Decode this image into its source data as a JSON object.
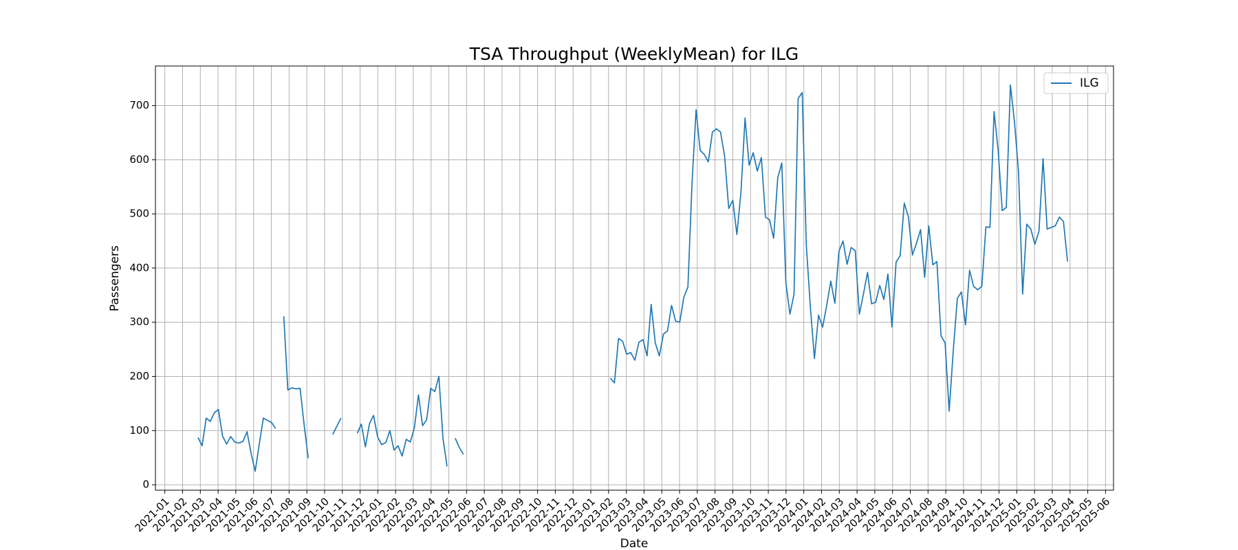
{
  "chart_data": {
    "type": "line",
    "title": "TSA Throughput (WeeklyMean) for ILG",
    "xlabel": "Date",
    "ylabel": "Passengers",
    "grid": true,
    "legend": "upper right",
    "xlim": [
      -0.53,
      53.45
    ],
    "ylim": [
      -10,
      773
    ],
    "yticks": [
      0,
      100,
      200,
      300,
      400,
      500,
      600,
      700
    ],
    "xticks": [
      {
        "value": 0,
        "label": "2021-01"
      },
      {
        "value": 1,
        "label": "2021-02"
      },
      {
        "value": 2,
        "label": "2021-03"
      },
      {
        "value": 3,
        "label": "2021-04"
      },
      {
        "value": 4,
        "label": "2021-05"
      },
      {
        "value": 5,
        "label": "2021-06"
      },
      {
        "value": 6,
        "label": "2021-07"
      },
      {
        "value": 7,
        "label": "2021-08"
      },
      {
        "value": 8,
        "label": "2021-09"
      },
      {
        "value": 9,
        "label": "2021-10"
      },
      {
        "value": 10,
        "label": "2021-11"
      },
      {
        "value": 11,
        "label": "2021-12"
      },
      {
        "value": 12,
        "label": "2022-01"
      },
      {
        "value": 13,
        "label": "2022-02"
      },
      {
        "value": 14,
        "label": "2022-03"
      },
      {
        "value": 15,
        "label": "2022-04"
      },
      {
        "value": 16,
        "label": "2022-05"
      },
      {
        "value": 17,
        "label": "2022-06"
      },
      {
        "value": 18,
        "label": "2022-07"
      },
      {
        "value": 19,
        "label": "2022-08"
      },
      {
        "value": 20,
        "label": "2022-09"
      },
      {
        "value": 21,
        "label": "2022-10"
      },
      {
        "value": 22,
        "label": "2022-11"
      },
      {
        "value": 23,
        "label": "2022-12"
      },
      {
        "value": 24,
        "label": "2023-01"
      },
      {
        "value": 25,
        "label": "2023-02"
      },
      {
        "value": 26,
        "label": "2023-03"
      },
      {
        "value": 27,
        "label": "2023-04"
      },
      {
        "value": 28,
        "label": "2023-05"
      },
      {
        "value": 29,
        "label": "2023-06"
      },
      {
        "value": 30,
        "label": "2023-07"
      },
      {
        "value": 31,
        "label": "2023-08"
      },
      {
        "value": 32,
        "label": "2023-09"
      },
      {
        "value": 33,
        "label": "2023-10"
      },
      {
        "value": 34,
        "label": "2023-11"
      },
      {
        "value": 35,
        "label": "2023-12"
      },
      {
        "value": 36,
        "label": "2024-01"
      },
      {
        "value": 37,
        "label": "2024-02"
      },
      {
        "value": 38,
        "label": "2024-03"
      },
      {
        "value": 39,
        "label": "2024-04"
      },
      {
        "value": 40,
        "label": "2024-05"
      },
      {
        "value": 41,
        "label": "2024-06"
      },
      {
        "value": 42,
        "label": "2024-07"
      },
      {
        "value": 43,
        "label": "2024-08"
      },
      {
        "value": 44,
        "label": "2024-09"
      },
      {
        "value": 45,
        "label": "2024-10"
      },
      {
        "value": 46,
        "label": "2024-11"
      },
      {
        "value": 47,
        "label": "2024-12"
      },
      {
        "value": 48,
        "label": "2025-01"
      },
      {
        "value": 49,
        "label": "2025-02"
      },
      {
        "value": 50,
        "label": "2025-03"
      },
      {
        "value": 51,
        "label": "2025-04"
      },
      {
        "value": 52,
        "label": "2025-05"
      },
      {
        "value": 53,
        "label": "2025-06"
      }
    ],
    "x": [
      1.87,
      2.1,
      2.33,
      2.56,
      2.79,
      3.02,
      3.25,
      3.48,
      3.71,
      3.94,
      4.17,
      4.4,
      4.63,
      4.86,
      5.09,
      5.32,
      5.55,
      5.78,
      6.01,
      6.24,
      6.47,
      6.7,
      6.93,
      7.16,
      7.39,
      7.62,
      7.85,
      8.08,
      8.31,
      8.54,
      8.77,
      9.0,
      9.23,
      9.46,
      9.69,
      9.92,
      10.15,
      10.38,
      10.61,
      10.84,
      11.07,
      11.3,
      11.53,
      11.76,
      11.99,
      12.22,
      12.45,
      12.68,
      12.91,
      13.14,
      13.37,
      13.6,
      13.83,
      14.06,
      14.29,
      14.52,
      14.75,
      14.98,
      15.21,
      15.44,
      15.67,
      15.9,
      16.13,
      16.36,
      16.59,
      16.82,
      17.05,
      17.28,
      17.51,
      17.74,
      17.97,
      18.2,
      18.43,
      18.66,
      18.89,
      19.12,
      19.35,
      19.58,
      19.81,
      20.04,
      20.27,
      20.5,
      20.73,
      20.96,
      21.19,
      21.42,
      21.65,
      21.88,
      22.11,
      22.34,
      22.57,
      22.8,
      23.03,
      23.26,
      23.49,
      23.72,
      23.95,
      24.18,
      24.41,
      24.64,
      24.87,
      25.1,
      25.33,
      25.56,
      25.79,
      26.02,
      26.25,
      26.48,
      26.71,
      26.94,
      27.17,
      27.4,
      27.63,
      27.86,
      28.09,
      28.32,
      28.55,
      28.78,
      29.01,
      29.24,
      29.47,
      29.7,
      29.93,
      30.16,
      30.39,
      30.62,
      30.85,
      31.08,
      31.31,
      31.54,
      31.77,
      32.0,
      32.23,
      32.46,
      32.69,
      32.92,
      33.15,
      33.38,
      33.61,
      33.84,
      34.07,
      34.3,
      34.53,
      34.76,
      34.99,
      35.22,
      35.45,
      35.68,
      35.91,
      36.14,
      36.37,
      36.6,
      36.83,
      37.06,
      37.29,
      37.52,
      37.75,
      37.98,
      38.21,
      38.44,
      38.67,
      38.9,
      39.13,
      39.36,
      39.59,
      39.82,
      40.05,
      40.28,
      40.51,
      40.74,
      40.97,
      41.2,
      41.43,
      41.66,
      41.89,
      42.12,
      42.35,
      42.58,
      42.81,
      43.04,
      43.27,
      43.5,
      43.73,
      43.96,
      44.19,
      44.42,
      44.65,
      44.88,
      45.11,
      45.34,
      45.57,
      45.8,
      46.03,
      46.26,
      46.49,
      46.72,
      46.95,
      47.18,
      47.41,
      47.64,
      47.87,
      48.1,
      48.33,
      48.56,
      48.79,
      49.02,
      49.25,
      49.48,
      49.71,
      49.94,
      50.17,
      50.4,
      50.63,
      50.86
    ],
    "series": [
      {
        "name": "ILG",
        "color": "#1f77b4",
        "values": [
          87,
          72,
          123,
          117,
          133,
          139,
          90,
          75,
          89,
          79,
          77,
          80,
          98,
          58,
          25,
          75,
          123,
          119,
          115,
          104,
          null,
          311,
          175,
          179,
          177,
          178,
          110,
          49,
          null,
          null,
          null,
          null,
          null,
          93,
          108,
          123,
          null,
          null,
          null,
          95,
          112,
          70,
          113,
          128,
          88,
          74,
          78,
          100,
          64,
          72,
          53,
          84,
          79,
          105,
          166,
          109,
          120,
          178,
          172,
          200,
          86,
          34,
          null,
          86,
          69,
          56,
          null,
          null,
          null,
          null,
          null,
          null,
          null,
          null,
          null,
          null,
          null,
          null,
          null,
          null,
          null,
          null,
          null,
          null,
          null,
          null,
          null,
          null,
          null,
          null,
          null,
          null,
          null,
          null,
          null,
          null,
          null,
          null,
          null,
          null,
          null,
          197,
          188,
          270,
          265,
          241,
          244,
          230,
          263,
          268,
          238,
          333,
          262,
          238,
          278,
          284,
          331,
          302,
          300,
          346,
          365,
          555,
          692,
          617,
          610,
          596,
          651,
          657,
          651,
          606,
          510,
          525,
          462,
          540,
          677,
          590,
          613,
          579,
          604,
          494,
          489,
          455,
          566,
          594,
          373,
          315,
          352,
          713,
          724,
          443,
          328,
          233,
          313,
          291,
          331,
          376,
          335,
          431,
          450,
          407,
          438,
          432,
          315,
          352,
          392,
          334,
          337,
          368,
          342,
          389,
          291,
          411,
          423,
          520,
          495,
          424,
          446,
          471,
          383,
          478,
          406,
          412,
          275,
          262,
          136,
          247,
          344,
          356,
          295,
          396,
          366,
          360,
          366,
          476,
          475,
          689,
          618,
          506,
          512,
          738,
          670,
          577,
          352,
          481,
          472,
          444,
          468,
          602,
          472,
          475,
          478,
          494,
          486,
          412
        ]
      }
    ]
  }
}
